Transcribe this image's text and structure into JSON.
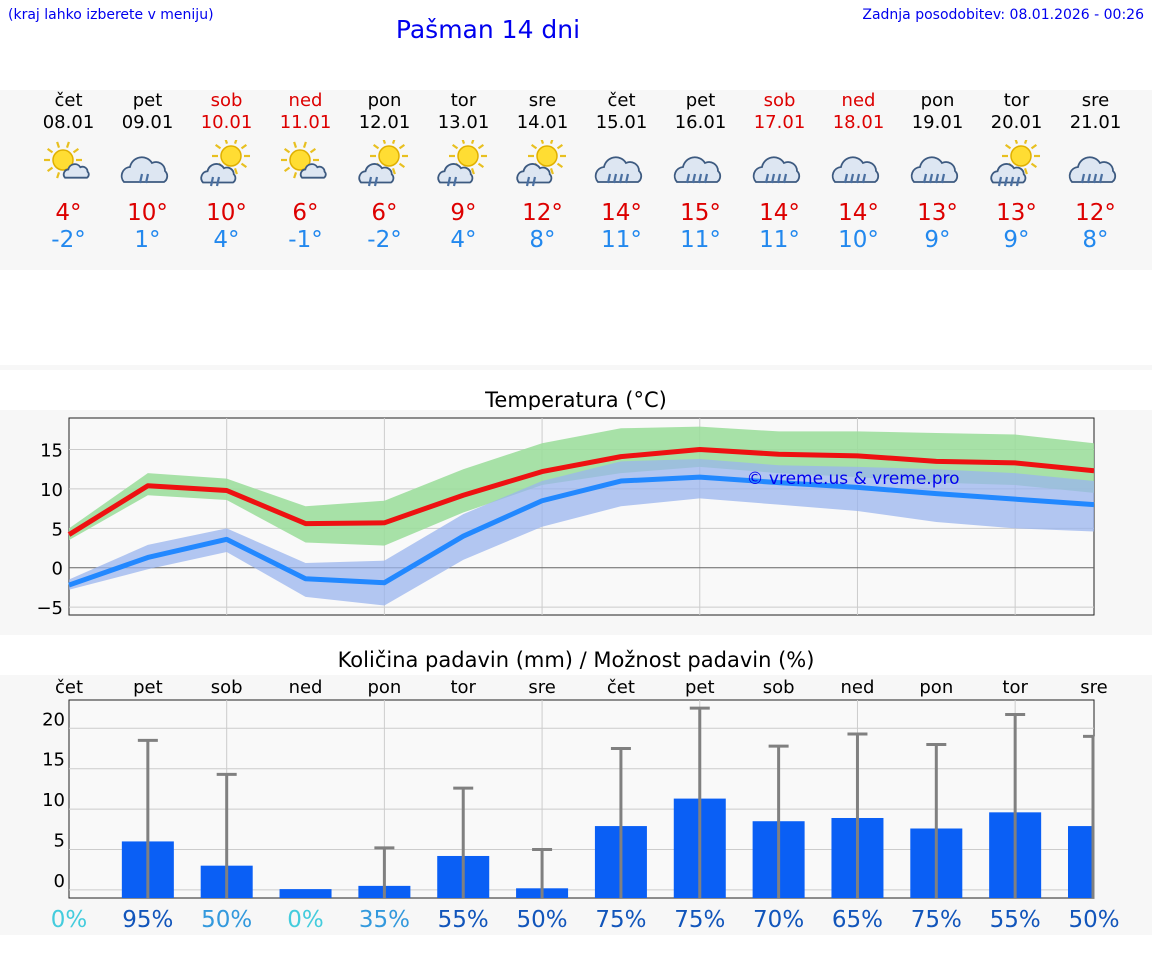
{
  "header": {
    "left_note": "(kraj lahko izberete v meniju)",
    "title": "Pašman 14 dni",
    "last_update": "Zadnja posodobitev: 08.01.2026 - 00:26"
  },
  "days": [
    {
      "name": "čet",
      "date": "08.01",
      "weekend": false,
      "icon": "sun-cloud-icon",
      "max": "4°",
      "min": "-2°"
    },
    {
      "name": "pet",
      "date": "09.01",
      "weekend": false,
      "icon": "rain-cloud-icon",
      "max": "10°",
      "min": "1°"
    },
    {
      "name": "sob",
      "date": "10.01",
      "weekend": true,
      "icon": "sun-rain-icon",
      "max": "10°",
      "min": "4°"
    },
    {
      "name": "ned",
      "date": "11.01",
      "weekend": true,
      "icon": "sun-cloud-icon",
      "max": "6°",
      "min": "-1°"
    },
    {
      "name": "pon",
      "date": "12.01",
      "weekend": false,
      "icon": "sun-rain-icon",
      "max": "6°",
      "min": "-2°"
    },
    {
      "name": "tor",
      "date": "13.01",
      "weekend": false,
      "icon": "sun-rain-icon",
      "max": "9°",
      "min": "4°"
    },
    {
      "name": "sre",
      "date": "14.01",
      "weekend": false,
      "icon": "sun-rain-icon",
      "max": "12°",
      "min": "8°"
    },
    {
      "name": "čet",
      "date": "15.01",
      "weekend": false,
      "icon": "heavy-rain-icon",
      "max": "14°",
      "min": "11°"
    },
    {
      "name": "pet",
      "date": "16.01",
      "weekend": false,
      "icon": "heavy-rain-icon",
      "max": "15°",
      "min": "11°"
    },
    {
      "name": "sob",
      "date": "17.01",
      "weekend": true,
      "icon": "heavy-rain-icon",
      "max": "14°",
      "min": "11°"
    },
    {
      "name": "ned",
      "date": "18.01",
      "weekend": true,
      "icon": "heavy-rain-icon",
      "max": "14°",
      "min": "10°"
    },
    {
      "name": "pon",
      "date": "19.01",
      "weekend": false,
      "icon": "heavy-rain-icon",
      "max": "13°",
      "min": "9°"
    },
    {
      "name": "tor",
      "date": "20.01",
      "weekend": false,
      "icon": "sun-heavy-rain-icon",
      "max": "13°",
      "min": "9°"
    },
    {
      "name": "sre",
      "date": "21.01",
      "weekend": false,
      "icon": "heavy-rain-icon",
      "max": "12°",
      "min": "8°"
    }
  ],
  "colors": {
    "max_line": "#ee1111",
    "min_line": "#2288ff",
    "max_band": "#99dd99",
    "min_band": "#99b4ee",
    "bar": "#0a5ff5",
    "whisker": "#808080",
    "title": "#0000ee"
  },
  "chart_data": [
    {
      "type": "line",
      "title": "Temperatura (°C)",
      "watermark": "© vreme.us & vreme.pro",
      "x": [
        "08.01",
        "09.01",
        "10.01",
        "11.01",
        "12.01",
        "13.01",
        "14.01",
        "15.01",
        "16.01",
        "17.01",
        "18.01",
        "19.01",
        "20.01",
        "21.01"
      ],
      "ylim": [
        -6,
        19
      ],
      "yticks": [
        -5,
        0,
        5,
        10,
        15
      ],
      "ytick_labels": [
        "−5",
        "0",
        "5",
        "10",
        "15"
      ],
      "series": [
        {
          "name": "max",
          "values": [
            4.2,
            10.4,
            9.8,
            5.6,
            5.7,
            9.2,
            12.2,
            14.1,
            15.0,
            14.4,
            14.2,
            13.5,
            13.3,
            12.3
          ],
          "band_low": [
            3.5,
            9.2,
            8.6,
            3.2,
            2.8,
            7.0,
            10.5,
            12.0,
            12.8,
            12.0,
            11.5,
            10.8,
            10.5,
            9.5
          ],
          "band_high": [
            5.0,
            12.0,
            11.3,
            7.8,
            8.5,
            12.5,
            15.8,
            17.7,
            17.9,
            17.3,
            17.3,
            17.1,
            16.9,
            15.8
          ]
        },
        {
          "name": "min",
          "values": [
            -2.2,
            1.3,
            3.6,
            -1.4,
            -1.9,
            4.0,
            8.5,
            11.0,
            11.5,
            10.8,
            10.2,
            9.4,
            8.7,
            8.0
          ],
          "band_low": [
            -2.8,
            -0.2,
            2.0,
            -3.7,
            -4.8,
            1.0,
            5.2,
            7.8,
            8.8,
            8.0,
            7.2,
            5.8,
            5.0,
            4.6
          ],
          "band_high": [
            -1.5,
            2.9,
            5.0,
            0.6,
            0.9,
            6.8,
            11.0,
            13.5,
            13.8,
            13.0,
            12.8,
            12.5,
            12.0,
            11.0
          ]
        }
      ]
    },
    {
      "type": "bar",
      "title": "Količina padavin (mm) / Možnost padavin (%)",
      "categories": [
        "čet",
        "pet",
        "sob",
        "ned",
        "pon",
        "tor",
        "sre",
        "čet",
        "pet",
        "sob",
        "ned",
        "pon",
        "tor",
        "sre"
      ],
      "values": [
        0,
        6.0,
        3.0,
        0.1,
        0.5,
        4.2,
        0.2,
        7.9,
        11.3,
        8.5,
        8.9,
        7.6,
        9.6,
        7.9
      ],
      "upper": [
        0,
        18.5,
        14.3,
        0,
        5.2,
        12.6,
        5.0,
        17.5,
        22.5,
        17.8,
        19.3,
        18.0,
        21.7,
        19.0
      ],
      "probabilities": [
        "0%",
        "95%",
        "50%",
        "0%",
        "35%",
        "55%",
        "50%",
        "75%",
        "75%",
        "70%",
        "65%",
        "75%",
        "55%",
        "50%"
      ],
      "probability_colors": [
        "#44ccdd",
        "#1155bb",
        "#3399dd",
        "#44ccdd",
        "#3399dd",
        "#1155bb",
        "#1155bb",
        "#1155bb",
        "#1155bb",
        "#1155bb",
        "#1155bb",
        "#1155bb",
        "#1155bb",
        "#1155bb"
      ],
      "ylim": [
        -1,
        23.5
      ],
      "yticks": [
        0,
        5,
        10,
        15,
        20
      ],
      "ytick_labels": [
        "0",
        "5",
        "10",
        "15",
        "20"
      ]
    }
  ]
}
